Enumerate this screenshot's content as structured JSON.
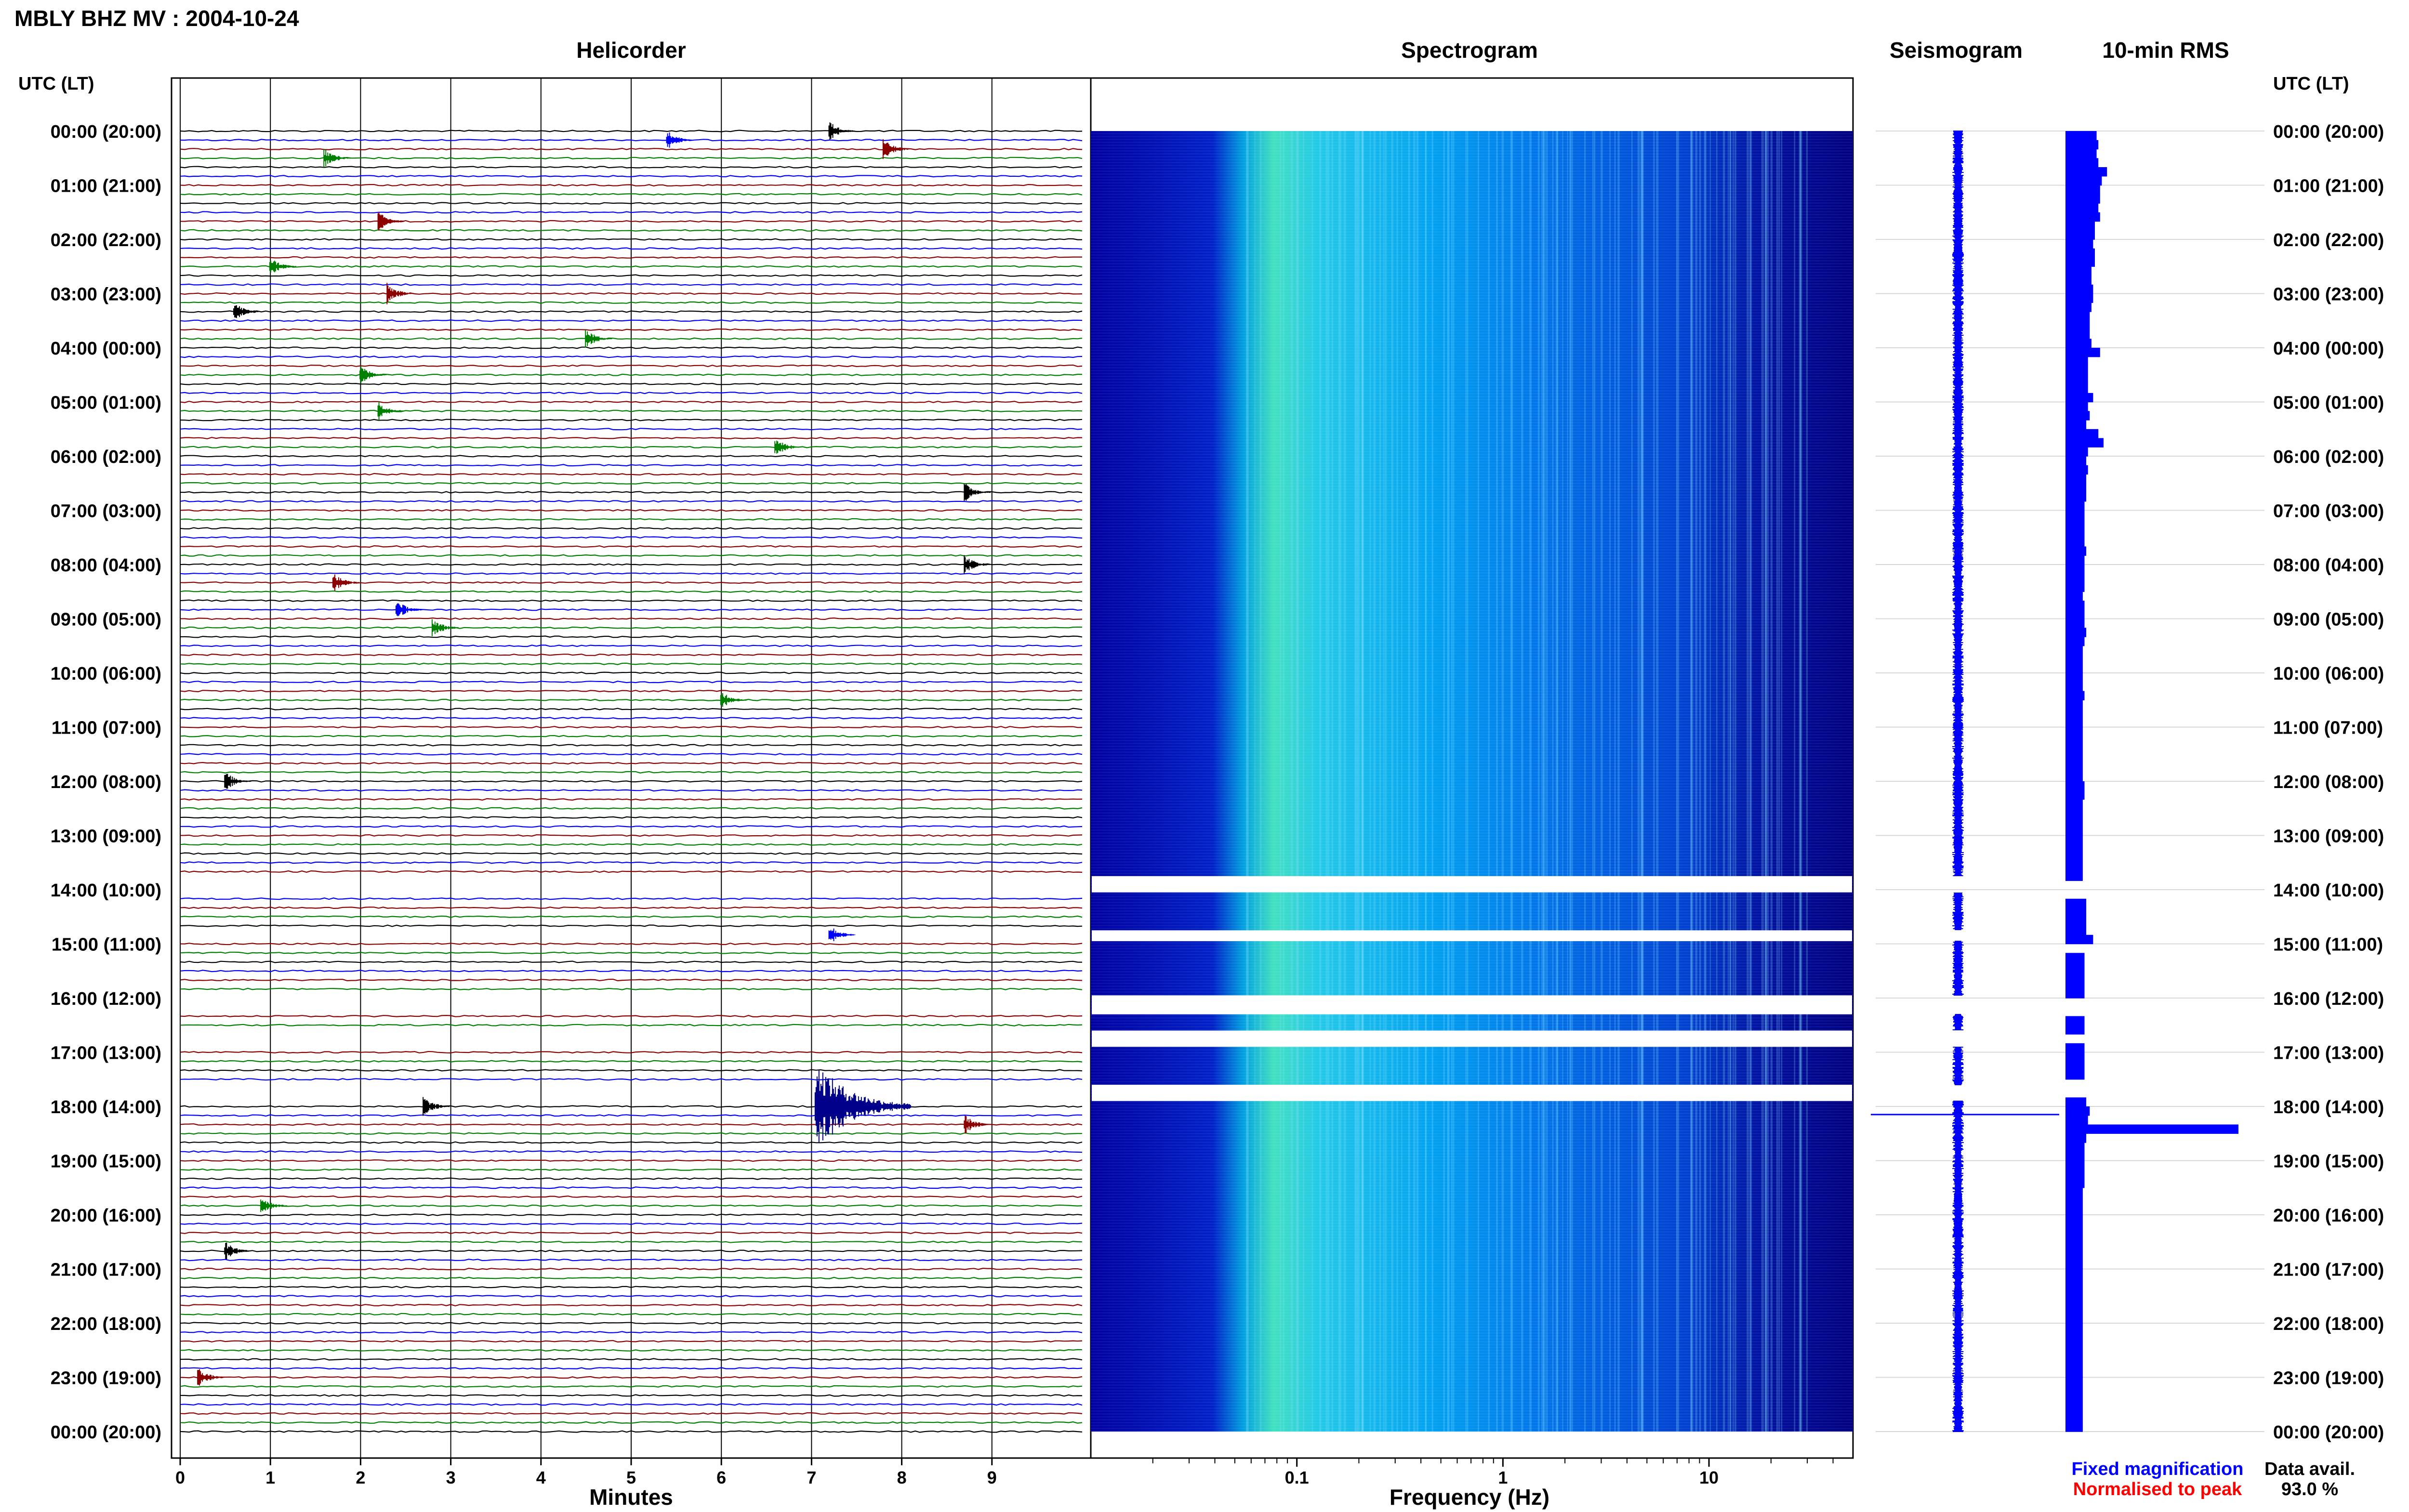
{
  "title": "MBLY BHZ MV : 2004-10-24",
  "panels": {
    "helicorder": "Helicorder",
    "spectrogram": "Spectrogram",
    "seismogram": "Seismogram",
    "rms": "10-min RMS"
  },
  "time_axis_label": "UTC (LT)",
  "hour_labels": [
    "00:00 (20:00)",
    "01:00 (21:00)",
    "02:00 (22:00)",
    "03:00 (23:00)",
    "04:00 (00:00)",
    "05:00 (01:00)",
    "06:00 (02:00)",
    "07:00 (03:00)",
    "08:00 (04:00)",
    "09:00 (05:00)",
    "10:00 (06:00)",
    "11:00 (07:00)",
    "12:00 (08:00)",
    "13:00 (09:00)",
    "14:00 (10:00)",
    "15:00 (11:00)",
    "16:00 (12:00)",
    "17:00 (13:00)",
    "18:00 (14:00)",
    "19:00 (15:00)",
    "20:00 (16:00)",
    "21:00 (17:00)",
    "22:00 (18:00)",
    "23:00 (19:00)",
    "00:00 (20:00)"
  ],
  "legend": {
    "fixed": "Fixed magnification",
    "normalised": "Normalised to peak",
    "data_avail_label": "Data avail.",
    "data_avail_value": "93.0 %"
  },
  "colors": {
    "trace_cycle": [
      "#000000",
      "#0000ff",
      "#8b0000",
      "#008000"
    ],
    "blue": "#0000ff",
    "spectrogram_low": "#00008b",
    "spectrogram_high": "#7fff7f"
  },
  "chart_data": [
    {
      "type": "line",
      "name": "helicorder",
      "title": "Helicorder",
      "xlabel": "Minutes",
      "xlim": [
        0,
        10
      ],
      "x_ticks": [
        0,
        1,
        2,
        3,
        4,
        5,
        6,
        7,
        8,
        9
      ],
      "x_tick_labels": [
        "0",
        "1",
        "2",
        "3",
        "4",
        "5",
        "6",
        "7",
        "8",
        "9"
      ],
      "rows": 144,
      "minutes_per_row": 10,
      "grid": true,
      "events": [
        {
          "row": 0,
          "minute": 7.3
        },
        {
          "row": 1,
          "minute": 5.5
        },
        {
          "row": 2,
          "minute": 7.9
        },
        {
          "row": 3,
          "minute": 1.7
        },
        {
          "row": 10,
          "minute": 2.3
        },
        {
          "row": 15,
          "minute": 1.1
        },
        {
          "row": 18,
          "minute": 2.4
        },
        {
          "row": 20,
          "minute": 0.7
        },
        {
          "row": 23,
          "minute": 4.6
        },
        {
          "row": 27,
          "minute": 2.1
        },
        {
          "row": 31,
          "minute": 2.3
        },
        {
          "row": 35,
          "minute": 6.7
        },
        {
          "row": 40,
          "minute": 8.8
        },
        {
          "row": 48,
          "minute": 8.8
        },
        {
          "row": 50,
          "minute": 1.8
        },
        {
          "row": 53,
          "minute": 2.5
        },
        {
          "row": 55,
          "minute": 2.9
        },
        {
          "row": 63,
          "minute": 6.1
        },
        {
          "row": 72,
          "minute": 0.6
        },
        {
          "row": 89,
          "minute": 7.3
        },
        {
          "row": 108,
          "minute": 7.2
        },
        {
          "row": 108,
          "minute": 2.8
        },
        {
          "row": 110,
          "minute": 8.8
        },
        {
          "row": 119,
          "minute": 1.0
        },
        {
          "row": 124,
          "minute": 0.6
        },
        {
          "row": 138,
          "minute": 0.3
        }
      ],
      "gaps_hours": [
        [
          13.75,
          14.05
        ],
        [
          14.75,
          14.95
        ],
        [
          15.95,
          16.3
        ],
        [
          16.6,
          16.9
        ],
        [
          17.6,
          17.9
        ]
      ]
    },
    {
      "type": "heatmap",
      "name": "spectrogram",
      "title": "Spectrogram",
      "xlabel": "Frequency (Hz)",
      "x_scale": "log",
      "xlim": [
        0.01,
        50
      ],
      "x_ticks": [
        0.1,
        1,
        10
      ],
      "x_tick_labels": [
        "0.1",
        "1",
        "10"
      ],
      "peak_frequency_hz": 0.15,
      "gaps_hours": [
        [
          13.75,
          14.05
        ],
        [
          14.75,
          14.95
        ],
        [
          15.95,
          16.3
        ],
        [
          16.6,
          16.9
        ],
        [
          17.6,
          17.9
        ]
      ]
    },
    {
      "type": "line",
      "name": "seismogram",
      "title": "Seismogram",
      "peak_hour": 18.15,
      "gaps_hours": [
        [
          13.75,
          14.05
        ],
        [
          14.75,
          14.95
        ],
        [
          15.95,
          16.3
        ],
        [
          16.6,
          16.9
        ],
        [
          17.6,
          17.9
        ]
      ]
    },
    {
      "type": "bar",
      "name": "rms",
      "title": "10-min RMS",
      "bins": 144,
      "values": [
        0.18,
        0.19,
        0.18,
        0.19,
        0.24,
        0.21,
        0.2,
        0.2,
        0.19,
        0.2,
        0.17,
        0.17,
        0.16,
        0.17,
        0.17,
        0.15,
        0.15,
        0.16,
        0.16,
        0.15,
        0.14,
        0.14,
        0.14,
        0.15,
        0.2,
        0.13,
        0.13,
        0.13,
        0.13,
        0.16,
        0.13,
        0.14,
        0.12,
        0.19,
        0.22,
        0.13,
        0.12,
        0.13,
        0.12,
        0.12,
        0.12,
        0.11,
        0.11,
        0.11,
        0.11,
        0.11,
        0.12,
        0.11,
        0.11,
        0.11,
        0.11,
        0.1,
        0.11,
        0.11,
        0.11,
        0.12,
        0.11,
        0.1,
        0.1,
        0.1,
        0.1,
        0.1,
        0.11,
        0.1,
        0.1,
        0.1,
        0.1,
        0.1,
        0.1,
        0.1,
        0.1,
        0.1,
        0.11,
        0.11,
        0.1,
        0.1,
        0.1,
        0.1,
        0.1,
        0.1,
        0.1,
        0.1,
        0.1,
        0.0,
        0.0,
        0.12,
        0.12,
        0.12,
        0.12,
        0.16,
        0.0,
        0.11,
        0.11,
        0.11,
        0.11,
        0.11,
        0.0,
        0.0,
        0.11,
        0.11,
        0.0,
        0.11,
        0.11,
        0.11,
        0.11,
        0.0,
        0.0,
        0.12,
        0.14,
        0.13,
        1.0,
        0.12,
        0.11,
        0.11,
        0.11,
        0.11,
        0.11,
        0.1,
        0.1,
        0.1,
        0.1,
        0.1,
        0.1,
        0.1,
        0.1,
        0.1,
        0.1,
        0.1,
        0.1,
        0.1,
        0.1,
        0.1,
        0.1,
        0.1,
        0.1,
        0.1,
        0.1,
        0.1,
        0.1,
        0.1,
        0.1,
        0.1,
        0.1,
        0.1
      ]
    }
  ]
}
